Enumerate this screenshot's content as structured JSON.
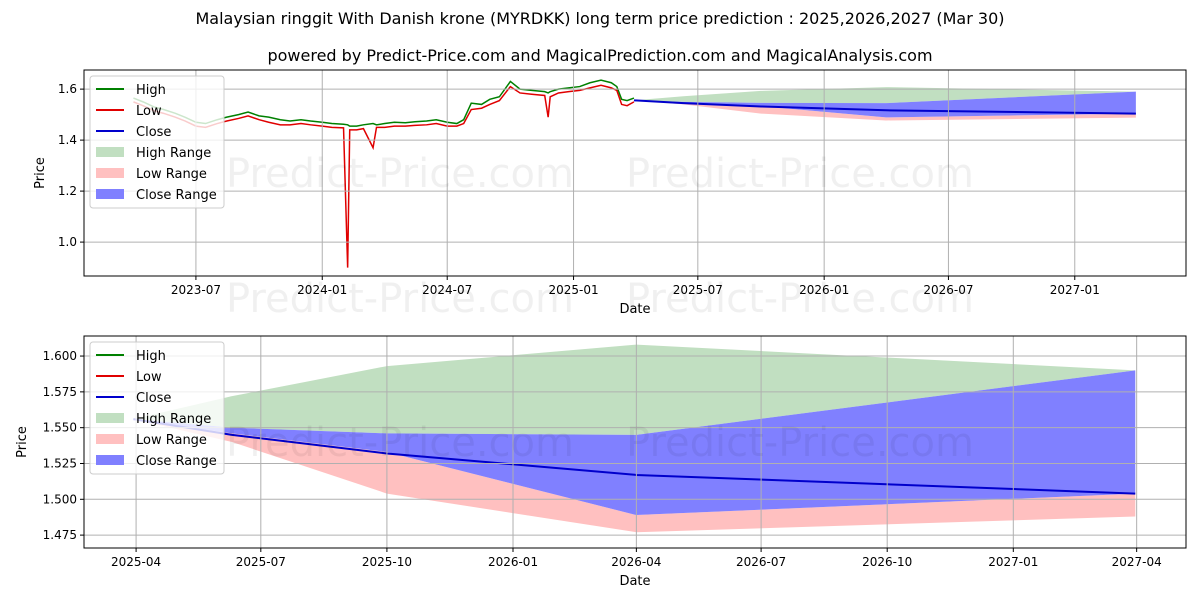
{
  "title": "Malaysian ringgit With Danish krone (MYRDKK) long term price prediction : 2025,2026,2027 (Mar 30)",
  "subtitle": "powered by Predict-Price.com and MagicalPrediction.com and MagicalAnalysis.com",
  "watermark": "Predict-Price.com",
  "colors": {
    "high": "#008000",
    "low": "#e00000",
    "close": "#0000cc",
    "high_range": "#c1dfc1",
    "low_range": "#ffc0c0",
    "close_range": "#8080ff",
    "grid": "#b0b0b0"
  },
  "legend": [
    "High",
    "Low",
    "Close",
    "High Range",
    "Low Range",
    "Close Range"
  ],
  "chart_data": [
    {
      "type": "line",
      "id": "overview",
      "xlabel": "Date",
      "ylabel": "Price",
      "xlim": [
        "2023-01-19",
        "2027-06-12"
      ],
      "ylim": [
        0.867,
        1.675
      ],
      "xticks": [
        [
          "2023-07-01",
          "2023-07"
        ],
        [
          "2024-01-01",
          "2024-01"
        ],
        [
          "2024-07-01",
          "2024-07"
        ],
        [
          "2025-01-01",
          "2025-01"
        ],
        [
          "2025-07-01",
          "2025-07"
        ],
        [
          "2026-01-01",
          "2026-01"
        ],
        [
          "2026-07-01",
          "2026-07"
        ],
        [
          "2027-01-01",
          "2027-01"
        ]
      ],
      "yticks": [
        [
          "1.0",
          "1.0"
        ],
        [
          "1.2",
          "1.2"
        ],
        [
          "1.4",
          "1.4"
        ],
        [
          "1.6",
          "1.6"
        ]
      ],
      "grid": true,
      "legend_position": "upper-left",
      "show_history": true
    },
    {
      "type": "line",
      "id": "forecast",
      "xlabel": "Date",
      "ylabel": "Price",
      "xlim": [
        "2025-02-22",
        "2027-05-07"
      ],
      "ylim": [
        1.466,
        1.614
      ],
      "xticks": [
        [
          "2025-04-01",
          "2025-04"
        ],
        [
          "2025-07-01",
          "2025-07"
        ],
        [
          "2025-10-01",
          "2025-10"
        ],
        [
          "2026-01-01",
          "2026-01"
        ],
        [
          "2026-04-01",
          "2026-04"
        ],
        [
          "2026-07-01",
          "2026-07"
        ],
        [
          "2026-10-01",
          "2026-10"
        ],
        [
          "2027-01-01",
          "2027-01"
        ],
        [
          "2027-04-01",
          "2027-04"
        ]
      ],
      "yticks": [
        [
          "1.475",
          "1.475"
        ],
        [
          "1.500",
          "1.500"
        ],
        [
          "1.525",
          "1.525"
        ],
        [
          "1.550",
          "1.550"
        ],
        [
          "1.575",
          "1.575"
        ],
        [
          "1.600",
          "1.600"
        ]
      ],
      "grid": true,
      "legend_position": "upper-left",
      "show_history": false
    }
  ],
  "history": {
    "dates": [
      "2023-04-01",
      "2023-04-15",
      "2023-05-01",
      "2023-05-15",
      "2023-06-01",
      "2023-06-15",
      "2023-07-01",
      "2023-07-15",
      "2023-08-01",
      "2023-08-15",
      "2023-09-01",
      "2023-09-15",
      "2023-10-01",
      "2023-10-15",
      "2023-11-01",
      "2023-11-15",
      "2023-12-01",
      "2023-12-15",
      "2024-01-01",
      "2024-01-15",
      "2024-02-01",
      "2024-02-07",
      "2024-02-10",
      "2024-02-20",
      "2024-03-01",
      "2024-03-15",
      "2024-03-20",
      "2024-04-01",
      "2024-04-15",
      "2024-05-01",
      "2024-05-15",
      "2024-06-01",
      "2024-06-15",
      "2024-07-01",
      "2024-07-15",
      "2024-07-25",
      "2024-08-05",
      "2024-08-20",
      "2024-09-01",
      "2024-09-15",
      "2024-10-01",
      "2024-10-15",
      "2024-11-01",
      "2024-11-20",
      "2024-11-25",
      "2024-11-28",
      "2024-12-10",
      "2024-12-25",
      "2025-01-10",
      "2025-01-25",
      "2025-02-10",
      "2025-02-25",
      "2025-03-05",
      "2025-03-12",
      "2025-03-20",
      "2025-03-30"
    ],
    "high": [
      1.565,
      1.55,
      1.53,
      1.52,
      1.505,
      1.49,
      1.47,
      1.465,
      1.48,
      1.49,
      1.5,
      1.51,
      1.495,
      1.49,
      1.48,
      1.475,
      1.48,
      1.475,
      1.47,
      1.465,
      1.462,
      1.46,
      1.455,
      1.455,
      1.46,
      1.465,
      1.46,
      1.465,
      1.47,
      1.468,
      1.472,
      1.475,
      1.48,
      1.47,
      1.465,
      1.48,
      1.545,
      1.54,
      1.56,
      1.57,
      1.63,
      1.6,
      1.595,
      1.59,
      1.585,
      1.59,
      1.6,
      1.605,
      1.61,
      1.625,
      1.635,
      1.625,
      1.61,
      1.56,
      1.555,
      1.565
    ],
    "low": [
      1.55,
      1.535,
      1.515,
      1.505,
      1.49,
      1.475,
      1.455,
      1.45,
      1.465,
      1.475,
      1.485,
      1.495,
      1.48,
      1.47,
      1.46,
      1.46,
      1.465,
      1.46,
      1.455,
      1.45,
      1.448,
      0.9,
      1.44,
      1.44,
      1.445,
      1.37,
      1.45,
      1.45,
      1.455,
      1.455,
      1.458,
      1.46,
      1.465,
      1.455,
      1.455,
      1.465,
      1.52,
      1.525,
      1.54,
      1.555,
      1.61,
      1.585,
      1.58,
      1.575,
      1.49,
      1.57,
      1.585,
      1.59,
      1.595,
      1.605,
      1.615,
      1.605,
      1.595,
      1.54,
      1.535,
      1.55
    ]
  },
  "forecast": {
    "dates": [
      "2025-03-30",
      "2025-06-10",
      "2025-10-01",
      "2026-04-01",
      "2027-03-31"
    ],
    "close": [
      1.556,
      1.545,
      1.532,
      1.517,
      1.504
    ],
    "high_range_top": [
      1.556,
      1.572,
      1.593,
      1.608,
      1.59
    ],
    "high_range_bottom": [
      1.556,
      1.55,
      1.546,
      1.545,
      1.59
    ],
    "close_range_top": [
      1.556,
      1.55,
      1.546,
      1.545,
      1.59
    ],
    "close_range_bottom": [
      1.556,
      1.546,
      1.533,
      1.489,
      1.504
    ],
    "low_range_top": [
      1.556,
      1.546,
      1.533,
      1.489,
      1.504
    ],
    "low_range_bottom": [
      1.556,
      1.54,
      1.504,
      1.477,
      1.488
    ]
  }
}
